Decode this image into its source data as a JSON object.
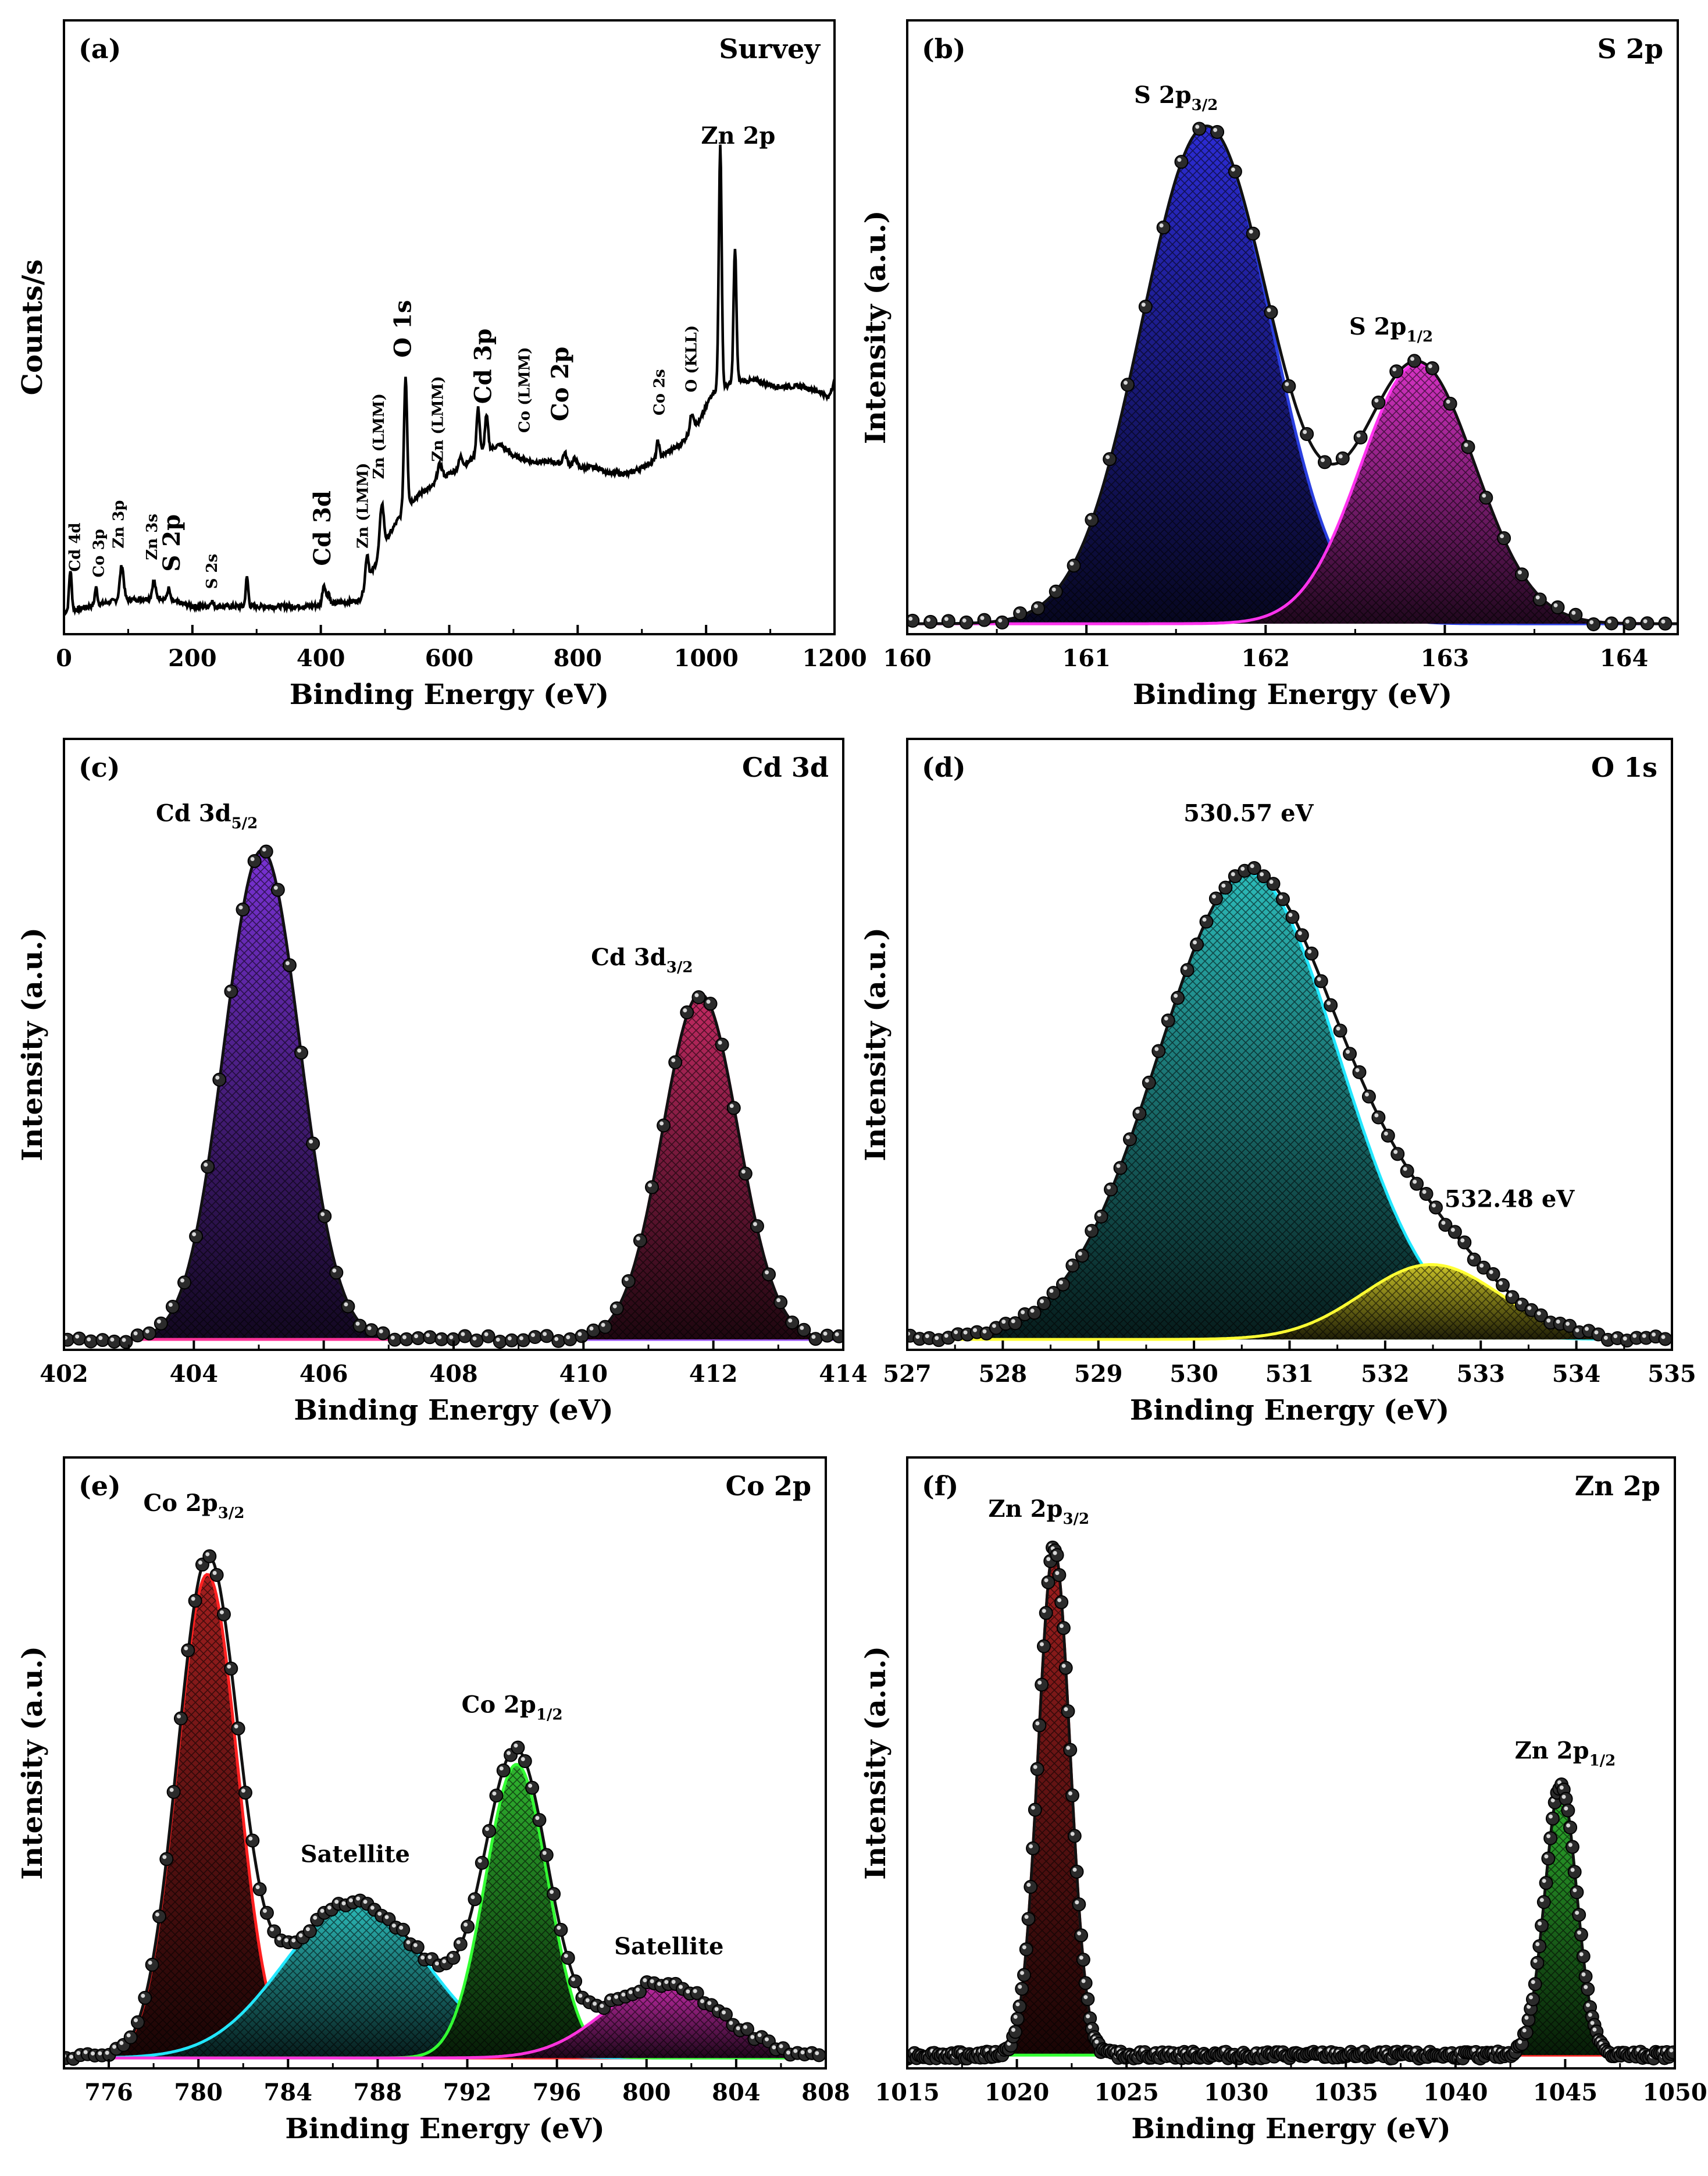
{
  "chart_data": [
    {
      "id": "a",
      "type": "line",
      "panel_letter": "(a)",
      "title": "Survey",
      "xlabel": "Binding Energy (eV)",
      "ylabel": "Counts/s",
      "xlim": [
        0,
        1200
      ],
      "ylim": [
        0,
        100
      ],
      "xticks": [
        0,
        200,
        400,
        600,
        800,
        1000,
        1200
      ],
      "show_yticks": false,
      "line_color": "#000000",
      "background": [
        [
          0,
          3
        ],
        [
          40,
          4
        ],
        [
          80,
          5
        ],
        [
          150,
          5.5
        ],
        [
          200,
          4
        ],
        [
          300,
          4
        ],
        [
          380,
          4
        ],
        [
          420,
          4.5
        ],
        [
          460,
          5
        ],
        [
          480,
          10
        ],
        [
          500,
          15
        ],
        [
          520,
          19
        ],
        [
          540,
          22
        ],
        [
          560,
          24
        ],
        [
          580,
          25
        ],
        [
          600,
          27
        ],
        [
          620,
          28
        ],
        [
          640,
          30
        ],
        [
          660,
          31
        ],
        [
          680,
          32
        ],
        [
          700,
          30
        ],
        [
          730,
          29
        ],
        [
          760,
          29
        ],
        [
          800,
          28
        ],
        [
          830,
          28
        ],
        [
          850,
          27
        ],
        [
          880,
          27
        ],
        [
          900,
          28
        ],
        [
          930,
          30
        ],
        [
          960,
          32
        ],
        [
          990,
          36
        ],
        [
          1010,
          41
        ],
        [
          1030,
          42
        ],
        [
          1050,
          43
        ],
        [
          1080,
          43
        ],
        [
          1110,
          42
        ],
        [
          1150,
          42
        ],
        [
          1180,
          41
        ],
        [
          1190,
          40
        ],
        [
          1200,
          43
        ]
      ],
      "peaks": [
        {
          "x": 10,
          "h": 7,
          "w": 2
        },
        {
          "x": 50,
          "h": 3,
          "w": 2
        },
        {
          "x": 90,
          "h": 6,
          "w": 3
        },
        {
          "x": 140,
          "h": 3,
          "w": 2.5
        },
        {
          "x": 163,
          "h": 2,
          "w": 2
        },
        {
          "x": 230,
          "h": 1,
          "w": 2
        },
        {
          "x": 285,
          "h": 5,
          "w": 2
        },
        {
          "x": 405,
          "h": 3.5,
          "w": 2.5
        },
        {
          "x": 412,
          "h": 2,
          "w": 2
        },
        {
          "x": 472,
          "h": 5,
          "w": 2.5
        },
        {
          "x": 495,
          "h": 8,
          "w": 3
        },
        {
          "x": 532,
          "h": 23,
          "w": 2.5
        },
        {
          "x": 585,
          "h": 3,
          "w": 4
        },
        {
          "x": 618,
          "h": 2,
          "w": 3
        },
        {
          "x": 645,
          "h": 8,
          "w": 2.5
        },
        {
          "x": 658,
          "h": 6,
          "w": 2.5
        },
        {
          "x": 780,
          "h": 2,
          "w": 3
        },
        {
          "x": 796,
          "h": 1.5,
          "w": 3
        },
        {
          "x": 925,
          "h": 3,
          "w": 2
        },
        {
          "x": 978,
          "h": 3,
          "w": 3
        },
        {
          "x": 1022,
          "h": 42,
          "w": 2.2
        },
        {
          "x": 1045,
          "h": 23,
          "w": 2.2
        }
      ],
      "annotations": [
        {
          "text": "Cd 4d",
          "x": 25,
          "y": 10,
          "rotate": true,
          "size": "small"
        },
        {
          "text": "Co 3p",
          "x": 62,
          "y": 9,
          "rotate": true,
          "size": "small"
        },
        {
          "text": "Zn 3p",
          "x": 93,
          "y": 14,
          "rotate": true,
          "size": "small"
        },
        {
          "text": "Zn 3s",
          "x": 145,
          "y": 12,
          "rotate": true,
          "size": "small"
        },
        {
          "text": "S 2p",
          "x": 180,
          "y": 10,
          "rotate": true,
          "size": "big"
        },
        {
          "text": "S 2s",
          "x": 238,
          "y": 7,
          "rotate": true,
          "size": "small"
        },
        {
          "text": "Cd 3d",
          "x": 415,
          "y": 11,
          "rotate": true,
          "size": "big"
        },
        {
          "text": "Zn (LMM)",
          "x": 473,
          "y": 14,
          "rotate": true,
          "size": "small"
        },
        {
          "text": "Zn (LMM)",
          "x": 498,
          "y": 26,
          "rotate": true,
          "size": "small"
        },
        {
          "text": "O 1s",
          "x": 540,
          "y": 47,
          "rotate": true,
          "size": "big"
        },
        {
          "text": "Zn (LMM)",
          "x": 590,
          "y": 29,
          "rotate": true,
          "size": "small"
        },
        {
          "text": "Cd 3p",
          "x": 665,
          "y": 39,
          "rotate": true,
          "size": "big"
        },
        {
          "text": "Co (LMM)",
          "x": 725,
          "y": 34,
          "rotate": true,
          "size": "small"
        },
        {
          "text": "Co 2p",
          "x": 785,
          "y": 36,
          "rotate": true,
          "size": "big"
        },
        {
          "text": "Co 2s",
          "x": 935,
          "y": 37,
          "rotate": true,
          "size": "small"
        },
        {
          "text": "O (KLL)",
          "x": 985,
          "y": 41,
          "rotate": true,
          "size": "small"
        },
        {
          "text": "Zn 2p",
          "x": 1050,
          "y": 84,
          "rotate": false,
          "size": "big"
        }
      ]
    },
    {
      "id": "b",
      "type": "area",
      "panel_letter": "(b)",
      "title": "S 2p",
      "xlabel": "Binding Energy (eV)",
      "ylabel": "Intensity (a.u.)",
      "xlim": [
        160,
        164.3
      ],
      "ylim": [
        0,
        100
      ],
      "xticks": [
        160,
        161,
        162,
        163,
        164
      ],
      "show_yticks": false,
      "baseline": 1,
      "components": [
        {
          "label": "S 2p3/2",
          "center": 161.67,
          "amp": 86,
          "sigma": 0.36,
          "color": "#2c2cd6",
          "edge": "#2a3fe0"
        },
        {
          "label": "S 2p1/2",
          "center": 162.85,
          "amp": 45,
          "sigma": 0.32,
          "color": "#d632c4",
          "edge": "#ff33ee"
        }
      ],
      "marker_step": 0.1,
      "labels": [
        {
          "text": "S 2p",
          "sub": "3/2",
          "x": 161.5,
          "y": 91
        },
        {
          "text": "S 2p",
          "sub": "1/2",
          "x": 162.7,
          "y": 51
        }
      ]
    },
    {
      "id": "c",
      "type": "area",
      "panel_letter": "(c)",
      "title": "Cd 3d",
      "xlabel": "Binding Energy (eV)",
      "ylabel": "Intensity (a.u.)",
      "xlim": [
        402,
        414
      ],
      "ylim": [
        0,
        100
      ],
      "xticks": [
        402,
        404,
        406,
        408,
        410,
        412,
        414
      ],
      "show_yticks": false,
      "baseline": 1,
      "components": [
        {
          "label": "Cd 3d5/2",
          "center": 405.05,
          "amp": 85,
          "sigma": 0.58,
          "color": "#7a32d6",
          "edge": "#9b59ff"
        },
        {
          "label": "Cd 3d3/2",
          "center": 411.8,
          "amp": 60,
          "sigma": 0.58,
          "color": "#c42a63",
          "edge": "#ff3399"
        }
      ],
      "marker_step": 0.18,
      "labels": [
        {
          "text": "Cd 3d",
          "sub": "5/2",
          "x": 404.2,
          "y": 91
        },
        {
          "text": "Cd 3d",
          "sub": "3/2",
          "x": 410.9,
          "y": 66
        }
      ]
    },
    {
      "id": "d",
      "type": "area",
      "panel_letter": "(d)",
      "title": "O 1s",
      "xlabel": "Binding Energy (eV)",
      "ylabel": "Intensity (a.u.)",
      "xlim": [
        527,
        535
      ],
      "ylim": [
        0,
        100
      ],
      "xticks": [
        527,
        528,
        529,
        530,
        531,
        532,
        533,
        534,
        535
      ],
      "show_yticks": false,
      "baseline": 1,
      "components": [
        {
          "label": "530.57 eV",
          "center": 530.57,
          "amp": 81,
          "sigma": 0.95,
          "color": "#2bbab8",
          "edge": "#22e7ff"
        },
        {
          "label": "532.48 eV",
          "center": 532.48,
          "amp": 13,
          "sigma": 0.72,
          "color": "#c9c227",
          "edge": "#ffff33"
        }
      ],
      "marker_step": 0.1,
      "labels": [
        {
          "text": "530.57 eV",
          "sub": "",
          "x": 530.57,
          "y": 91
        },
        {
          "text": "532.48 eV",
          "sub": "",
          "x": 533.3,
          "y": 24
        }
      ]
    },
    {
      "id": "e",
      "type": "area",
      "panel_letter": "(e)",
      "title": "Co 2p",
      "xlabel": "Binding Energy (eV)",
      "ylabel": "Intensity (a.u.)",
      "xlim": [
        774,
        808
      ],
      "ylim": [
        0,
        100
      ],
      "xticks": [
        776,
        780,
        784,
        788,
        792,
        796,
        800,
        804,
        808
      ],
      "show_yticks": false,
      "baseline": 1,
      "components": [
        {
          "label": "Co 2p3/2",
          "center": 780.4,
          "amp": 84,
          "sigma": 1.35,
          "color": "#a31f1f",
          "edge": "#ff2020"
        },
        {
          "label": "Satellite",
          "center": 787.0,
          "amp": 27,
          "sigma": 3.2,
          "color": "#2bbab8",
          "edge": "#22e7ff"
        },
        {
          "label": "Co 2p1/2",
          "center": 794.2,
          "amp": 51,
          "sigma": 1.4,
          "color": "#2fb52f",
          "edge": "#33ff33"
        },
        {
          "label": "Satellite",
          "center": 800.7,
          "amp": 13,
          "sigma": 2.6,
          "color": "#c42aa8",
          "edge": "#ff33dd"
        }
      ],
      "marker_step": 0.32,
      "labels": [
        {
          "text": "Co 2p",
          "sub": "3/2",
          "x": 779.8,
          "y": 96
        },
        {
          "text": "Satellite",
          "sub": "",
          "x": 787.0,
          "y": 35
        },
        {
          "text": "Co 2p",
          "sub": "1/2",
          "x": 794.0,
          "y": 61
        },
        {
          "text": "Satellite",
          "sub": "",
          "x": 801.0,
          "y": 19
        }
      ]
    },
    {
      "id": "f",
      "type": "area",
      "panel_letter": "(f)",
      "title": "Zn 2p",
      "xlabel": "Binding Energy (eV)",
      "ylabel": "Intensity (a.u.)",
      "xlim": [
        1015,
        1050
      ],
      "ylim": [
        0,
        100
      ],
      "xticks": [
        1015,
        1020,
        1025,
        1030,
        1035,
        1040,
        1045,
        1050
      ],
      "show_yticks": false,
      "baseline": 1.5,
      "components": [
        {
          "label": "Zn 2p3/2",
          "center": 1021.7,
          "amp": 88,
          "sigma": 0.72,
          "color": "#a31f1f",
          "edge": "#ff2020"
        },
        {
          "label": "Zn 2p1/2",
          "center": 1044.8,
          "amp": 47,
          "sigma": 0.72,
          "color": "#2fb52f",
          "edge": "#33ff33"
        }
      ],
      "marker_step": 0.1,
      "labels": [
        {
          "text": "Zn 2p",
          "sub": "3/2",
          "x": 1021.0,
          "y": 95
        },
        {
          "text": "Zn 2p",
          "sub": "1/2",
          "x": 1045.0,
          "y": 53
        }
      ]
    }
  ]
}
